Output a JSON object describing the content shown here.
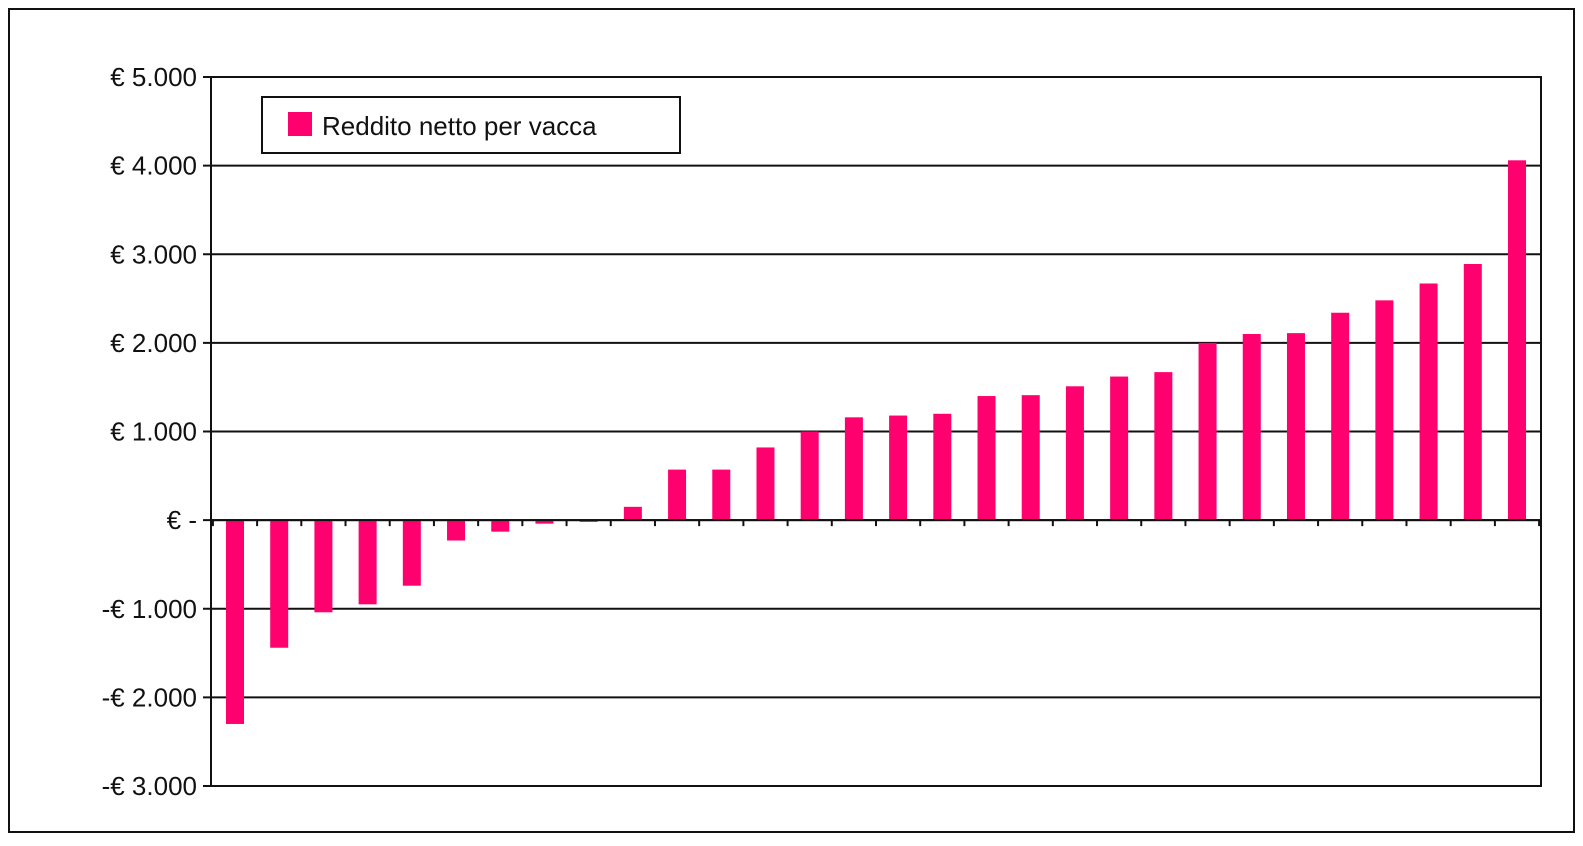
{
  "chart_data": {
    "type": "bar",
    "title": "",
    "xlabel": "",
    "ylabel": "",
    "ylim": [
      -3000,
      5000
    ],
    "yticks": [
      {
        "value": 5000,
        "label": "€ 5.000"
      },
      {
        "value": 4000,
        "label": "€ 4.000"
      },
      {
        "value": 3000,
        "label": "€ 3.000"
      },
      {
        "value": 2000,
        "label": "€ 2.000"
      },
      {
        "value": 1000,
        "label": "€ 1.000"
      },
      {
        "value": 0,
        "label": "€ -"
      },
      {
        "value": -1000,
        "label": "-€ 1.000"
      },
      {
        "value": -2000,
        "label": "-€ 2.000"
      },
      {
        "value": -3000,
        "label": "-€ 3.000"
      }
    ],
    "grid": true,
    "legend": {
      "position": "top-left"
    },
    "series": [
      {
        "name": "Reddito netto per vacca",
        "color": "#ff006e",
        "values": [
          -2300,
          -1440,
          -1040,
          -950,
          -740,
          -230,
          -130,
          -40,
          -20,
          150,
          570,
          570,
          820,
          1000,
          1160,
          1180,
          1200,
          1400,
          1410,
          1510,
          1620,
          1670,
          2000,
          2100,
          2110,
          2340,
          2480,
          2670,
          2890,
          4060
        ]
      }
    ]
  }
}
